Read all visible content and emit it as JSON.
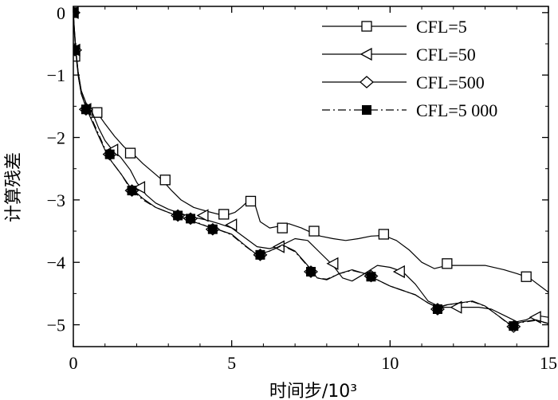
{
  "chart_data": {
    "type": "line",
    "title": "",
    "xlabel": "时间步/10³",
    "ylabel": "计算残差",
    "xlim": [
      0,
      15
    ],
    "ylim": [
      -5.35,
      0.1
    ],
    "xticks": [
      0,
      5,
      10,
      15
    ],
    "yticks": [
      0,
      -1,
      -2,
      -3,
      -4,
      -5
    ],
    "xtick_labels": [
      "0",
      "5",
      "10",
      "15"
    ],
    "ytick_labels": [
      "0",
      "−1",
      "−2",
      "−3",
      "−4",
      "−5"
    ],
    "grid": false,
    "legend_position": "top-right",
    "series": [
      {
        "name": "CFL=5",
        "marker": "square-open",
        "line": "solid",
        "x": [
          0,
          0.03,
          0.08,
          0.15,
          0.25,
          0.4,
          0.6,
          0.75,
          1.0,
          1.3,
          1.6,
          1.9,
          2.2,
          2.5,
          2.8,
          3.1,
          3.4,
          3.8,
          4.2,
          4.5,
          4.8,
          5.1,
          5.3,
          5.45,
          5.6,
          5.75,
          5.9,
          6.2,
          6.5,
          6.8,
          7.2,
          7.5,
          7.8,
          8.2,
          8.6,
          9.0,
          9.4,
          9.8,
          10.2,
          10.6,
          11.0,
          11.4,
          11.8,
          12.2,
          12.6,
          13.0,
          13.6,
          14.0,
          14.4,
          15.0
        ],
        "y": [
          0,
          -0.25,
          -0.6,
          -0.95,
          -1.25,
          -1.45,
          -1.55,
          -1.6,
          -1.78,
          -1.98,
          -2.15,
          -2.27,
          -2.42,
          -2.55,
          -2.68,
          -2.85,
          -3.0,
          -3.12,
          -3.18,
          -3.22,
          -3.25,
          -3.2,
          -3.12,
          -3.05,
          -3.0,
          -3.1,
          -3.35,
          -3.45,
          -3.42,
          -3.38,
          -3.45,
          -3.52,
          -3.58,
          -3.62,
          -3.65,
          -3.62,
          -3.58,
          -3.57,
          -3.65,
          -3.8,
          -4.0,
          -4.1,
          -4.05,
          -4.05,
          -4.05,
          -4.05,
          -4.12,
          -4.18,
          -4.25,
          -4.48
        ],
        "markers_x": [
          0,
          0.05,
          0.75,
          1.8,
          2.9,
          4.75,
          5.6,
          6.6,
          7.6,
          9.8,
          11.8,
          14.3
        ],
        "markers_y": [
          0,
          -0.7,
          -1.6,
          -2.25,
          -2.68,
          -3.23,
          -3.02,
          -3.45,
          -3.5,
          -3.55,
          -4.02,
          -4.23
        ]
      },
      {
        "name": "CFL=50",
        "marker": "triangle-left-open",
        "line": "solid",
        "x": [
          0,
          0.03,
          0.08,
          0.15,
          0.25,
          0.4,
          0.6,
          0.8,
          1.0,
          1.2,
          1.5,
          1.8,
          2.0,
          2.3,
          2.6,
          3.0,
          3.4,
          3.8,
          4.2,
          4.6,
          5.0,
          5.4,
          5.8,
          6.2,
          6.6,
          7.0,
          7.4,
          7.8,
          8.2,
          8.5,
          8.8,
          9.2,
          9.6,
          10.0,
          10.4,
          10.8,
          11.2,
          11.6,
          12.0,
          12.4,
          12.8,
          13.2,
          13.6,
          14.0,
          14.3,
          14.6,
          15.0
        ],
        "y": [
          0,
          -0.25,
          -0.6,
          -0.95,
          -1.25,
          -1.45,
          -1.6,
          -1.85,
          -2.05,
          -2.18,
          -2.32,
          -2.52,
          -2.72,
          -2.92,
          -3.05,
          -3.15,
          -3.22,
          -3.28,
          -3.32,
          -3.38,
          -3.45,
          -3.6,
          -3.75,
          -3.78,
          -3.72,
          -3.62,
          -3.65,
          -3.85,
          -4.05,
          -4.25,
          -4.3,
          -4.18,
          -4.05,
          -4.08,
          -4.15,
          -4.35,
          -4.62,
          -4.72,
          -4.72,
          -4.72,
          -4.72,
          -4.75,
          -4.85,
          -4.95,
          -4.92,
          -4.85,
          -4.88
        ],
        "markers_x": [
          0,
          0.05,
          0.4,
          1.25,
          2.1,
          4.1,
          5.0,
          6.5,
          8.2,
          10.3,
          12.1,
          14.6
        ],
        "markers_y": [
          0,
          -0.6,
          -1.55,
          -2.2,
          -2.8,
          -3.25,
          -3.4,
          -3.75,
          -4.02,
          -4.15,
          -4.72,
          -4.88
        ]
      },
      {
        "name": "CFL=500",
        "marker": "diamond-open",
        "line": "solid",
        "x": [
          0,
          0.03,
          0.08,
          0.15,
          0.25,
          0.4,
          0.6,
          0.8,
          1.0,
          1.2,
          1.5,
          1.8,
          2.2,
          2.6,
          3.0,
          3.4,
          3.8,
          4.2,
          4.6,
          5.0,
          5.4,
          5.8,
          6.2,
          6.6,
          7.0,
          7.4,
          7.7,
          8.0,
          8.4,
          8.8,
          9.2,
          9.6,
          10.0,
          10.4,
          10.8,
          11.2,
          11.5,
          11.8,
          12.2,
          12.6,
          13.0,
          13.4,
          13.8,
          14.2,
          14.6,
          15.0
        ],
        "y": [
          0,
          -0.3,
          -0.65,
          -1.0,
          -1.3,
          -1.52,
          -1.75,
          -1.98,
          -2.2,
          -2.38,
          -2.58,
          -2.8,
          -2.98,
          -3.12,
          -3.2,
          -3.28,
          -3.35,
          -3.42,
          -3.48,
          -3.55,
          -3.72,
          -3.88,
          -3.82,
          -3.72,
          -3.82,
          -4.05,
          -4.25,
          -4.28,
          -4.18,
          -4.12,
          -4.18,
          -4.28,
          -4.38,
          -4.45,
          -4.52,
          -4.65,
          -4.72,
          -4.68,
          -4.65,
          -4.62,
          -4.7,
          -4.85,
          -5.0,
          -4.95,
          -4.92,
          -4.98
        ],
        "markers_x": [
          0,
          0.05,
          0.4,
          1.15,
          1.85,
          3.3,
          3.7,
          4.4,
          5.9,
          7.5,
          9.4,
          11.5,
          13.9
        ],
        "markers_y": [
          0,
          -0.6,
          -1.55,
          -2.27,
          -2.85,
          -3.25,
          -3.3,
          -3.47,
          -3.88,
          -4.15,
          -4.22,
          -4.75,
          -5.03
        ]
      },
      {
        "name": "CFL=5 000",
        "marker": "square-filled",
        "line": "dash-dot",
        "x": [
          0,
          0.03,
          0.08,
          0.15,
          0.25,
          0.4,
          0.6,
          0.8,
          1.0,
          1.2,
          1.5,
          1.8,
          2.2,
          2.6,
          3.0,
          3.4,
          3.8,
          4.2,
          4.6,
          5.0,
          5.4,
          5.8,
          6.2,
          6.6,
          7.0,
          7.4,
          7.7,
          8.0,
          8.4,
          8.8,
          9.2,
          9.6,
          10.0,
          10.4,
          10.8,
          11.2,
          11.5,
          11.8,
          12.2,
          12.6,
          13.0,
          13.4,
          13.8,
          14.2,
          14.6,
          15.0
        ],
        "y": [
          0,
          -0.3,
          -0.65,
          -1.0,
          -1.3,
          -1.5,
          -1.72,
          -1.95,
          -2.18,
          -2.38,
          -2.58,
          -2.82,
          -3.0,
          -3.12,
          -3.2,
          -3.27,
          -3.34,
          -3.42,
          -3.48,
          -3.56,
          -3.73,
          -3.88,
          -3.82,
          -3.73,
          -3.83,
          -4.06,
          -4.25,
          -4.27,
          -4.18,
          -4.13,
          -4.18,
          -4.28,
          -4.38,
          -4.45,
          -4.52,
          -4.65,
          -4.73,
          -4.68,
          -4.65,
          -4.63,
          -4.7,
          -4.85,
          -5.01,
          -4.96,
          -4.93,
          -4.98
        ],
        "markers_x": [
          0,
          0.05,
          0.4,
          1.15,
          1.85,
          3.3,
          3.7,
          4.4,
          5.9,
          7.5,
          9.4,
          11.5,
          13.9
        ],
        "markers_y": [
          0,
          -0.6,
          -1.55,
          -2.27,
          -2.85,
          -3.25,
          -3.3,
          -3.47,
          -3.88,
          -4.15,
          -4.23,
          -4.75,
          -5.02
        ]
      }
    ]
  }
}
